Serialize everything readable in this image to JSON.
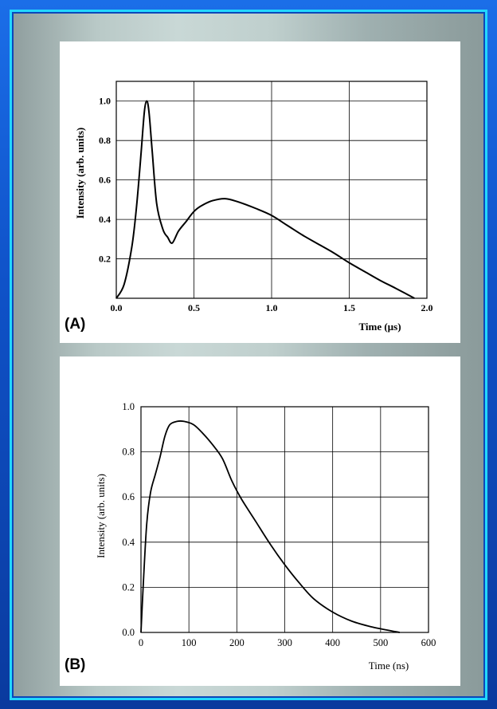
{
  "chart_data": [
    {
      "type": "line",
      "panel_label": "(A)",
      "title": "",
      "xlabel": "Time (µs)",
      "ylabel": "Intensity (arb. units)",
      "xlim": [
        0.0,
        2.0
      ],
      "ylim": [
        0.0,
        1.1
      ],
      "xticks": [
        "0.0",
        "0.5",
        "1.0",
        "1.5",
        "2.0"
      ],
      "yticks": [
        "0.2",
        "0.4",
        "0.6",
        "0.8",
        "1.0"
      ],
      "xtick_values": [
        0.0,
        0.5,
        1.0,
        1.5,
        2.0
      ],
      "ytick_values": [
        0.2,
        0.4,
        0.6,
        0.8,
        1.0
      ],
      "grid": true,
      "series": [
        {
          "x": [
            0.0,
            0.05,
            0.1,
            0.13,
            0.16,
            0.18,
            0.195,
            0.21,
            0.23,
            0.26,
            0.3,
            0.33,
            0.36,
            0.4,
            0.45,
            0.5,
            0.55,
            0.62,
            0.7,
            0.78,
            0.9,
            1.0,
            1.1,
            1.2,
            1.3,
            1.4,
            1.5,
            1.6,
            1.7,
            1.8,
            1.92
          ],
          "y": [
            0.0,
            0.07,
            0.26,
            0.46,
            0.74,
            0.94,
            1.0,
            0.95,
            0.76,
            0.48,
            0.35,
            0.31,
            0.28,
            0.34,
            0.39,
            0.44,
            0.47,
            0.495,
            0.505,
            0.49,
            0.455,
            0.42,
            0.37,
            0.32,
            0.275,
            0.23,
            0.18,
            0.135,
            0.09,
            0.05,
            0.0
          ]
        }
      ]
    },
    {
      "type": "line",
      "panel_label": "(B)",
      "title": "",
      "xlabel": "Time (ns)",
      "ylabel": "Intensity (arb. units)",
      "xlim": [
        0,
        600
      ],
      "ylim": [
        0.0,
        1.0
      ],
      "xticks": [
        "0",
        "100",
        "200",
        "300",
        "400",
        "500",
        "600"
      ],
      "yticks": [
        "0.0",
        "0.2",
        "0.4",
        "0.6",
        "0.8",
        "1.0"
      ],
      "xtick_values": [
        0,
        100,
        200,
        300,
        400,
        500,
        600
      ],
      "ytick_values": [
        0.0,
        0.2,
        0.4,
        0.6,
        0.8,
        1.0
      ],
      "grid": true,
      "series": [
        {
          "x": [
            0,
            5,
            12,
            20,
            30,
            40,
            50,
            60,
            75,
            90,
            110,
            130,
            150,
            170,
            190,
            210,
            240,
            270,
            300,
            330,
            360,
            400,
            440,
            480,
            520,
            540
          ],
          "y": [
            0.0,
            0.22,
            0.48,
            0.62,
            0.7,
            0.78,
            0.87,
            0.92,
            0.935,
            0.935,
            0.92,
            0.88,
            0.83,
            0.77,
            0.67,
            0.59,
            0.49,
            0.39,
            0.3,
            0.22,
            0.15,
            0.09,
            0.05,
            0.025,
            0.008,
            0.0
          ]
        }
      ]
    }
  ]
}
